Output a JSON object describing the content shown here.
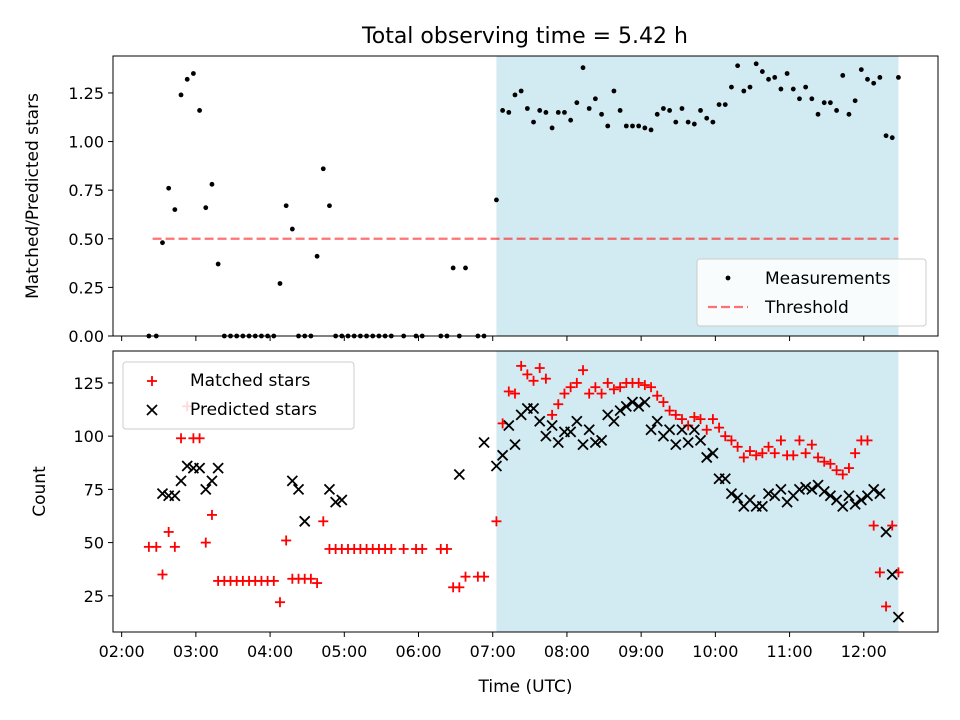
{
  "figure": {
    "title": "Total observing time = 5.42 h"
  },
  "chart_data": [
    {
      "type": "scatter",
      "panel": "top",
      "ylabel": "Matched/Predicted stars",
      "ylim": [
        0,
        1.44
      ],
      "yticks": [
        0.0,
        0.25,
        0.5,
        0.75,
        1.0,
        1.25
      ],
      "ytick_labels": [
        "0.00",
        "0.25",
        "0.50",
        "0.75",
        "1.00",
        "1.25"
      ],
      "shaded_interval": [
        "07:03",
        "12:28"
      ],
      "shade_color": "#add8e6",
      "threshold": {
        "name": "Threshold",
        "y": 0.5,
        "x_range": [
          "02:25",
          "12:28"
        ],
        "color": "#ff0000",
        "style": "dashed"
      },
      "legend": {
        "placement": "lower-right",
        "entries": [
          "Measurements",
          "Threshold"
        ]
      },
      "series": [
        {
          "name": "Measurements",
          "color": "#000000",
          "marker": "dot",
          "x": [
            "02:22",
            "02:28",
            "02:33",
            "02:38",
            "02:43",
            "02:48",
            "02:53",
            "02:58",
            "03:03",
            "03:08",
            "03:13",
            "03:18",
            "03:23",
            "03:28",
            "03:33",
            "03:38",
            "03:43",
            "03:48",
            "03:53",
            "03:58",
            "04:03",
            "04:08",
            "04:13",
            "04:18",
            "04:23",
            "04:28",
            "04:33",
            "04:38",
            "04:43",
            "04:48",
            "04:53",
            "04:58",
            "05:03",
            "05:08",
            "05:13",
            "05:18",
            "05:23",
            "05:28",
            "05:33",
            "05:38",
            "05:48",
            "05:58",
            "06:03",
            "06:18",
            "06:23",
            "06:28",
            "06:33",
            "06:38",
            "06:48",
            "06:53",
            "07:03",
            "07:08",
            "07:13",
            "07:18",
            "07:23",
            "07:28",
            "07:33",
            "07:38",
            "07:43",
            "07:48",
            "07:53",
            "07:58",
            "08:03",
            "08:08",
            "08:13",
            "08:18",
            "08:23",
            "08:28",
            "08:33",
            "08:38",
            "08:43",
            "08:48",
            "08:53",
            "08:58",
            "09:03",
            "09:08",
            "09:13",
            "09:18",
            "09:23",
            "09:28",
            "09:33",
            "09:38",
            "09:43",
            "09:48",
            "09:53",
            "09:58",
            "10:03",
            "10:08",
            "10:13",
            "10:18",
            "10:23",
            "10:28",
            "10:33",
            "10:38",
            "10:43",
            "10:48",
            "10:53",
            "10:58",
            "11:03",
            "11:08",
            "11:13",
            "11:18",
            "11:23",
            "11:28",
            "11:33",
            "11:38",
            "11:43",
            "11:48",
            "11:53",
            "11:58",
            "12:03",
            "12:08",
            "12:13",
            "12:18",
            "12:23",
            "12:28"
          ],
          "y": [
            0.0,
            0.0,
            0.48,
            0.76,
            0.65,
            1.24,
            1.32,
            1.35,
            1.16,
            0.66,
            0.78,
            0.37,
            0.0,
            0.0,
            0.0,
            0.0,
            0.0,
            0.0,
            0.0,
            0.0,
            0.0,
            0.27,
            0.67,
            0.55,
            0.0,
            0.0,
            0.0,
            0.41,
            0.86,
            0.67,
            0.0,
            0.0,
            0.0,
            0.0,
            0.0,
            0.0,
            0.0,
            0.0,
            0.0,
            0.0,
            0.0,
            0.0,
            0.0,
            0.0,
            0.0,
            0.35,
            0.0,
            0.35,
            0.0,
            0.0,
            0.7,
            1.16,
            1.15,
            1.24,
            1.26,
            1.17,
            1.1,
            1.16,
            1.15,
            1.07,
            1.15,
            1.15,
            1.11,
            1.2,
            1.38,
            1.17,
            1.22,
            1.14,
            1.08,
            1.26,
            1.16,
            1.08,
            1.08,
            1.08,
            1.07,
            1.06,
            1.14,
            1.17,
            1.16,
            1.1,
            1.17,
            1.1,
            1.09,
            1.16,
            1.12,
            1.1,
            1.19,
            1.19,
            1.28,
            1.39,
            1.26,
            1.28,
            1.4,
            1.36,
            1.32,
            1.33,
            1.27,
            1.35,
            1.27,
            1.22,
            1.28,
            1.22,
            1.14,
            1.2,
            1.2,
            1.16,
            1.34,
            1.14,
            1.21,
            1.37,
            1.32,
            1.3,
            1.33,
            1.03,
            1.02,
            1.33
          ]
        }
      ]
    },
    {
      "type": "scatter",
      "panel": "bottom",
      "ylabel": "Count",
      "xlabel": "Time (UTC)",
      "ylim": [
        8,
        140
      ],
      "yticks": [
        25,
        50,
        75,
        100,
        125
      ],
      "xlim": [
        "01:53",
        "13:00"
      ],
      "xtick_labels": [
        "02:00",
        "03:00",
        "04:00",
        "05:00",
        "06:00",
        "07:00",
        "08:00",
        "09:00",
        "10:00",
        "11:00",
        "12:00"
      ],
      "shaded_interval": [
        "07:03",
        "12:28"
      ],
      "shade_color": "#add8e6",
      "legend": {
        "placement": "upper-left",
        "entries": [
          "Matched stars",
          "Predicted stars"
        ]
      },
      "series": [
        {
          "name": "Matched stars",
          "color": "#ff0000",
          "marker": "plus",
          "x": [
            "02:22",
            "02:28",
            "02:33",
            "02:38",
            "02:43",
            "02:48",
            "02:53",
            "02:58",
            "03:03",
            "03:08",
            "03:13",
            "03:18",
            "03:23",
            "03:28",
            "03:33",
            "03:38",
            "03:43",
            "03:48",
            "03:53",
            "03:58",
            "04:03",
            "04:08",
            "04:13",
            "04:18",
            "04:23",
            "04:28",
            "04:33",
            "04:38",
            "04:43",
            "04:48",
            "04:53",
            "04:58",
            "05:03",
            "05:08",
            "05:13",
            "05:18",
            "05:23",
            "05:28",
            "05:33",
            "05:38",
            "05:48",
            "05:58",
            "06:03",
            "06:18",
            "06:23",
            "06:28",
            "06:33",
            "06:38",
            "06:48",
            "06:53",
            "07:03",
            "07:08",
            "07:13",
            "07:18",
            "07:23",
            "07:28",
            "07:33",
            "07:38",
            "07:43",
            "07:48",
            "07:53",
            "07:58",
            "08:03",
            "08:08",
            "08:13",
            "08:18",
            "08:23",
            "08:28",
            "08:33",
            "08:38",
            "08:43",
            "08:48",
            "08:53",
            "08:58",
            "09:03",
            "09:08",
            "09:13",
            "09:18",
            "09:23",
            "09:28",
            "09:33",
            "09:38",
            "09:43",
            "09:48",
            "09:53",
            "09:58",
            "10:03",
            "10:08",
            "10:13",
            "10:18",
            "10:23",
            "10:28",
            "10:33",
            "10:38",
            "10:43",
            "10:48",
            "10:53",
            "10:58",
            "11:03",
            "11:08",
            "11:13",
            "11:18",
            "11:23",
            "11:28",
            "11:33",
            "11:38",
            "11:43",
            "11:48",
            "11:53",
            "11:58",
            "12:03",
            "12:08",
            "12:13",
            "12:18",
            "12:23",
            "12:28"
          ],
          "y": [
            48,
            48,
            35,
            55,
            48,
            99,
            114,
            99,
            99,
            50,
            63,
            32,
            32,
            32,
            32,
            32,
            32,
            32,
            32,
            32,
            32,
            22,
            51,
            33,
            33,
            33,
            33,
            31,
            60,
            47,
            47,
            47,
            47,
            47,
            47,
            47,
            47,
            47,
            47,
            47,
            47,
            47,
            47,
            47,
            47,
            29,
            29,
            34,
            34,
            34,
            60,
            106,
            121,
            120,
            133,
            129,
            126,
            132,
            127,
            110,
            115,
            120,
            123,
            125,
            131,
            120,
            123,
            120,
            125,
            122,
            123,
            125,
            125,
            125,
            124,
            123,
            119,
            116,
            112,
            110,
            108,
            105,
            109,
            108,
            103,
            108,
            104,
            100,
            98,
            95,
            90,
            93,
            91,
            92,
            95,
            92,
            98,
            91,
            91,
            98,
            92,
            96,
            90,
            88,
            87,
            84,
            82,
            85,
            92,
            98,
            98,
            58,
            36,
            20,
            58,
            36
          ],
          "y_note_omit": true
        },
        {
          "name": "Predicted stars",
          "color": "#000000",
          "marker": "x",
          "x": [
            "02:33",
            "02:38",
            "02:43",
            "02:48",
            "02:53",
            "02:58",
            "03:03",
            "03:08",
            "03:13",
            "03:18",
            "04:18",
            "04:23",
            "04:28",
            "04:48",
            "04:53",
            "04:58",
            "06:33",
            "06:53",
            "07:03",
            "07:08",
            "07:13",
            "07:18",
            "07:23",
            "07:28",
            "07:33",
            "07:38",
            "07:43",
            "07:48",
            "07:53",
            "07:58",
            "08:03",
            "08:08",
            "08:13",
            "08:18",
            "08:23",
            "08:28",
            "08:33",
            "08:38",
            "08:43",
            "08:48",
            "08:53",
            "08:58",
            "09:03",
            "09:08",
            "09:13",
            "09:18",
            "09:23",
            "09:28",
            "09:33",
            "09:38",
            "09:43",
            "09:48",
            "09:53",
            "09:58",
            "10:03",
            "10:08",
            "10:13",
            "10:18",
            "10:23",
            "10:28",
            "10:33",
            "10:38",
            "10:43",
            "10:48",
            "10:53",
            "10:58",
            "11:03",
            "11:08",
            "11:13",
            "11:18",
            "11:23",
            "11:28",
            "11:33",
            "11:38",
            "11:43",
            "11:48",
            "11:53",
            "11:58",
            "12:03",
            "12:08",
            "12:13",
            "12:18",
            "12:23",
            "12:28"
          ],
          "y": [
            73,
            72,
            72,
            79,
            86,
            85,
            85,
            75,
            79,
            85,
            79,
            75,
            60,
            75,
            69,
            70,
            82,
            97,
            86,
            91,
            105,
            96,
            110,
            113,
            113,
            107,
            100,
            105,
            97,
            102,
            102,
            107,
            96,
            103,
            97,
            98,
            110,
            107,
            112,
            114,
            116,
            114,
            116,
            103,
            107,
            100,
            103,
            96,
            103,
            97,
            103,
            98,
            90,
            92,
            80,
            80,
            73,
            71,
            67,
            70,
            67,
            67,
            73,
            72,
            75,
            69,
            72,
            75,
            76,
            75,
            77,
            74,
            72,
            70,
            67,
            72,
            68,
            70,
            72,
            75,
            73,
            55,
            35,
            15
          ],
          "y_note_omit": true
        }
      ]
    }
  ]
}
